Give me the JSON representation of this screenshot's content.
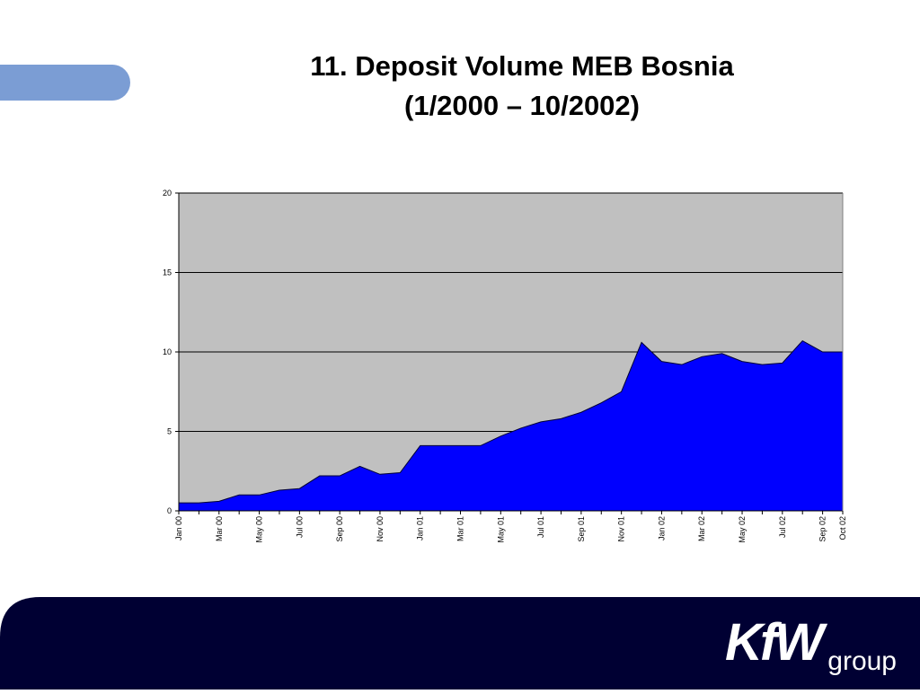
{
  "chart_data": {
    "type": "area",
    "title": "11. Deposit Volume MEB Bosnia",
    "subtitle": "(1/2000 – 10/2002)",
    "categories": [
      "Jan 00",
      null,
      "Mar 00",
      null,
      "May 00",
      null,
      "Jul 00",
      null,
      "Sep 00",
      null,
      "Nov 00",
      null,
      "Jan 01",
      null,
      "Mar 01",
      null,
      "May 01",
      null,
      "Jul 01",
      null,
      "Sep 01",
      null,
      "Nov 01",
      null,
      "Jan 02",
      null,
      "Mar 02",
      null,
      "May 02",
      null,
      "Jul 02",
      null,
      "Sep 02",
      "Oct 02"
    ],
    "values": [
      0.5,
      0.5,
      0.6,
      1.0,
      1.0,
      1.3,
      1.4,
      2.2,
      2.2,
      2.8,
      2.3,
      2.4,
      4.1,
      4.1,
      4.1,
      4.1,
      4.7,
      5.2,
      5.6,
      5.8,
      6.2,
      6.8,
      7.5,
      10.6,
      9.4,
      9.2,
      9.7,
      9.9,
      9.4,
      9.2,
      9.3,
      10.7,
      10.0,
      10.0
    ],
    "color": "#0000ff",
    "ylim": [
      0,
      20
    ],
    "yticks": [
      0,
      5,
      10,
      15,
      20
    ],
    "grid": true
  },
  "footer": {
    "logo": "KfW",
    "logo_suffix": "group"
  }
}
